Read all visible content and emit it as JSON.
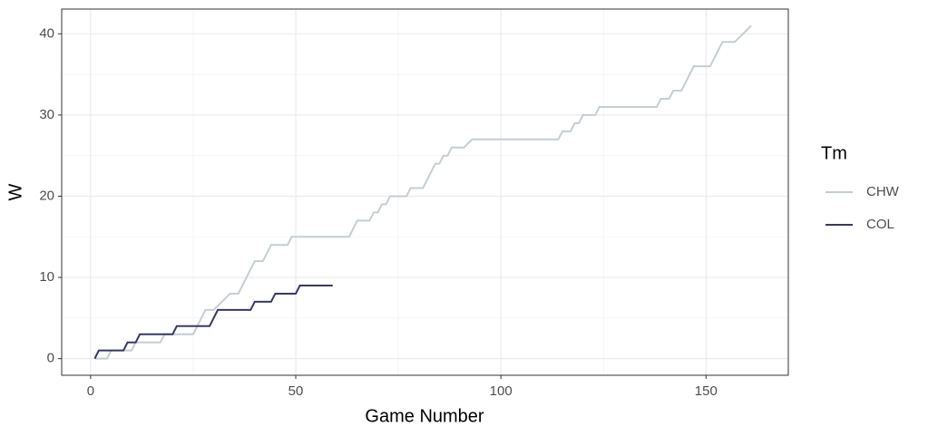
{
  "chart_data": {
    "type": "line",
    "x_label": "Game Number",
    "y_label": "W",
    "legend_title": "Tm",
    "xlim": [
      -7.05,
      170.05
    ],
    "xticks": [
      0,
      50,
      100,
      150
    ],
    "ylim": [
      -2.05,
      43.05
    ],
    "yticks": [
      0,
      10,
      20,
      30,
      40
    ],
    "grid": true,
    "legend": "right",
    "series": [
      {
        "name": "CHW",
        "color": "#c4ced4",
        "x": [
          1,
          4,
          5,
          10,
          11,
          17,
          18,
          25,
          27,
          28,
          30,
          32,
          34,
          36,
          40,
          42,
          44,
          48,
          49,
          63,
          65,
          68,
          69,
          70,
          71,
          72,
          73,
          77,
          78,
          81,
          84,
          85,
          86,
          87,
          88,
          91,
          93,
          114,
          115,
          117,
          118,
          119,
          120,
          123,
          124,
          138,
          139,
          141,
          142,
          144,
          147,
          151,
          154,
          156,
          157,
          161
        ],
        "values": [
          0,
          0,
          1,
          1,
          2,
          2,
          3,
          3,
          5,
          6,
          6,
          7,
          8,
          8,
          12,
          12,
          14,
          14,
          15,
          15,
          17,
          17,
          18,
          18,
          19,
          19,
          20,
          20,
          21,
          21,
          24,
          24,
          25,
          25,
          26,
          26,
          27,
          27,
          28,
          28,
          29,
          29,
          30,
          30,
          31,
          31,
          32,
          32,
          33,
          33,
          36,
          36,
          39,
          39,
          39,
          41
        ]
      },
      {
        "name": "COL",
        "color": "#383866",
        "x": [
          1,
          2,
          8,
          9,
          11,
          12,
          20,
          21,
          29,
          31,
          39,
          40,
          44,
          45,
          50,
          51,
          59
        ],
        "values": [
          0,
          1,
          1,
          2,
          2,
          3,
          3,
          4,
          4,
          6,
          6,
          7,
          7,
          8,
          8,
          9,
          9
        ]
      }
    ]
  }
}
